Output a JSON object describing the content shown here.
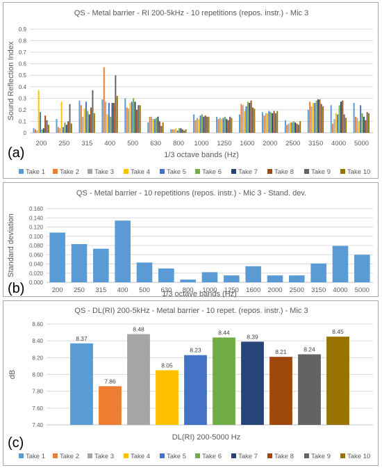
{
  "chart_data": [
    {
      "type": "bar",
      "title": "QS - Metal barrier - RI 200-5kHz - 10 repetitions (repos. instr.) - Mic 3",
      "xlabel": "1/3 octave bands (Hz)",
      "ylabel": "Sound Reflection Index",
      "panel_letter": "(a)",
      "ylim": [
        0,
        0.9
      ],
      "yticks": [
        "0",
        "0.1",
        "0.2",
        "0.3",
        "0.4",
        "0.5",
        "0.6",
        "0.7",
        "0.8",
        "0.9"
      ],
      "categories": [
        "200",
        "250",
        "315",
        "400",
        "500",
        "630",
        "800",
        "1000",
        "1250",
        "1600",
        "2000",
        "2500",
        "3150",
        "4000",
        "5000"
      ],
      "series": [
        {
          "name": "Take 1",
          "color": "#5b9bd5",
          "values": [
            0.04,
            0.12,
            0.28,
            0.29,
            0.3,
            0.09,
            0.03,
            0.16,
            0.14,
            0.16,
            0.18,
            0.11,
            0.2,
            0.24,
            0.26
          ]
        },
        {
          "name": "Take 2",
          "color": "#ed7d31",
          "values": [
            0.03,
            0.05,
            0.24,
            0.57,
            0.22,
            0.14,
            0.03,
            0.11,
            0.12,
            0.25,
            0.15,
            0.07,
            0.27,
            0.08,
            0.14
          ]
        },
        {
          "name": "Take 3",
          "color": "#a5a5a5",
          "values": [
            0.02,
            0.04,
            0.14,
            0.27,
            0.21,
            0.14,
            0.03,
            0.13,
            0.13,
            0.24,
            0.17,
            0.08,
            0.23,
            0.12,
            0.13
          ]
        },
        {
          "name": "Take 4",
          "color": "#ffc000",
          "values": [
            0.37,
            0.27,
            0.21,
            0.16,
            0.26,
            0.12,
            0.04,
            0.12,
            0.12,
            0.19,
            0.17,
            0.09,
            0.26,
            0.17,
            0.1
          ]
        },
        {
          "name": "Take 5",
          "color": "#4472c4",
          "values": [
            0.18,
            0.05,
            0.27,
            0.26,
            0.27,
            0.12,
            0.02,
            0.15,
            0.13,
            0.23,
            0.19,
            0.09,
            0.26,
            0.16,
            0.24
          ]
        },
        {
          "name": "Take 6",
          "color": "#70ad47",
          "values": [
            0.03,
            0.09,
            0.19,
            0.14,
            0.3,
            0.13,
            0.04,
            0.16,
            0.14,
            0.27,
            0.18,
            0.1,
            0.28,
            0.24,
            0.17
          ]
        },
        {
          "name": "Take 7",
          "color": "#264478",
          "values": [
            0.04,
            0.07,
            0.16,
            0.26,
            0.27,
            0.14,
            0.04,
            0.14,
            0.12,
            0.26,
            0.17,
            0.09,
            0.29,
            0.27,
            0.14
          ]
        },
        {
          "name": "Take 8",
          "color": "#9e480e",
          "values": [
            0.15,
            0.1,
            0.22,
            0.26,
            0.2,
            0.1,
            0.03,
            0.15,
            0.11,
            0.28,
            0.19,
            0.08,
            0.29,
            0.28,
            0.11
          ]
        },
        {
          "name": "Take 9",
          "color": "#636363",
          "values": [
            0.11,
            0.25,
            0.37,
            0.5,
            0.24,
            0.06,
            0.02,
            0.14,
            0.14,
            0.22,
            0.17,
            0.07,
            0.25,
            0.16,
            0.18
          ]
        },
        {
          "name": "Take 10",
          "color": "#997300",
          "values": [
            0.07,
            0.08,
            0.17,
            0.32,
            0.24,
            0.09,
            0.03,
            0.14,
            0.13,
            0.21,
            0.19,
            0.1,
            0.23,
            0.13,
            0.17
          ]
        }
      ]
    },
    {
      "type": "bar",
      "title": "QS - Metal barrier - 10 repetitions (repos. instr.) - Mic 3 - Stand. dev.",
      "xlabel": "1/3 octave bands (Hz)",
      "ylabel": "Standard deviation",
      "panel_letter": "(b)",
      "ylim": [
        0,
        0.16
      ],
      "yticks": [
        "0.000",
        "0.020",
        "0.040",
        "0.060",
        "0.080",
        "0.100",
        "0.120",
        "0.140",
        "0.160"
      ],
      "categories": [
        "200",
        "250",
        "315",
        "400",
        "500",
        "630",
        "800",
        "1000",
        "1250",
        "1600",
        "2000",
        "2500",
        "3150",
        "4000",
        "5000"
      ],
      "color": "#5b9bd5",
      "values": [
        0.108,
        0.083,
        0.073,
        0.134,
        0.043,
        0.03,
        0.006,
        0.022,
        0.015,
        0.035,
        0.015,
        0.015,
        0.041,
        0.079,
        0.06
      ]
    },
    {
      "type": "bar",
      "title": "QS - DL(RI) 200-5kHz - Metal barrier - 10 repet. (repos. instr.) - Mic 3",
      "xlabel": "DL(RI) 200-5000 Hz",
      "ylabel": "dB",
      "panel_letter": "(c)",
      "ylim": [
        7.4,
        8.6
      ],
      "yticks": [
        "7.40",
        "7.60",
        "7.80",
        "8.00",
        "8.20",
        "8.40",
        "8.60"
      ],
      "categories": [
        "Take 1",
        "Take 2",
        "Take 3",
        "Take 4",
        "Take 5",
        "Take 6",
        "Take 7",
        "Take 8",
        "Take 9",
        "Take 10"
      ],
      "colors": [
        "#5b9bd5",
        "#ed7d31",
        "#a5a5a5",
        "#ffc000",
        "#4472c4",
        "#70ad47",
        "#264478",
        "#9e480e",
        "#636363",
        "#997300"
      ],
      "values": [
        8.37,
        7.86,
        8.48,
        8.05,
        8.23,
        8.44,
        8.39,
        8.21,
        8.24,
        8.45
      ],
      "data_labels": [
        "8.37",
        "7.86",
        "8.48",
        "8.05",
        "8.23",
        "8.44",
        "8.39",
        "8.21",
        "8.24",
        "8.45"
      ]
    }
  ]
}
